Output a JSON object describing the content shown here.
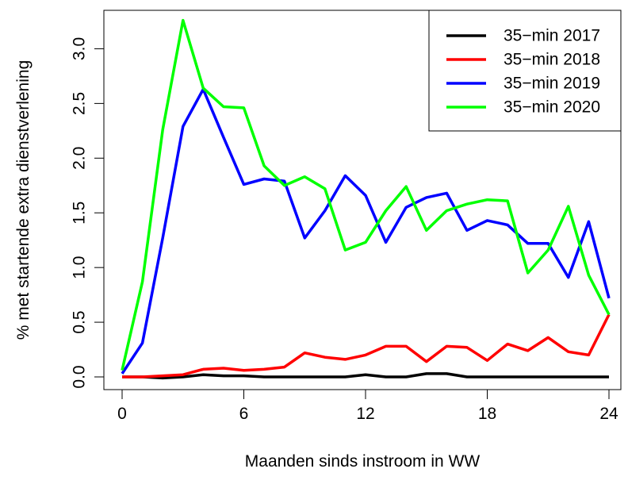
{
  "chart_data": {
    "type": "line",
    "xlabel": "Maanden sinds instroom in WW",
    "ylabel": "% met startende extra dienstverlening",
    "xlim": [
      0,
      24
    ],
    "ylim": [
      0,
      3.25
    ],
    "xticks": [
      0,
      6,
      12,
      18,
      24
    ],
    "yticks": [
      0.0,
      0.5,
      1.0,
      1.5,
      2.0,
      2.5,
      3.0
    ],
    "ytick_labels": [
      "0.0",
      "0.5",
      "1.0",
      "1.5",
      "2.0",
      "2.5",
      "3.0"
    ],
    "grid": false,
    "legend_position": "top-right",
    "x": [
      0,
      1,
      2,
      3,
      4,
      5,
      6,
      7,
      8,
      9,
      10,
      11,
      12,
      13,
      14,
      15,
      16,
      17,
      18,
      19,
      20,
      21,
      22,
      23,
      24
    ],
    "series": [
      {
        "name": "35−min 2017",
        "color": "#000000",
        "values": [
          0.0,
          0.0,
          -0.01,
          0.0,
          0.02,
          0.01,
          0.01,
          0.0,
          0.0,
          0.0,
          0.0,
          0.0,
          0.02,
          0.0,
          0.0,
          0.03,
          0.03,
          0.0,
          0.0,
          0.0,
          0.0,
          0.0,
          0.0,
          0.0,
          0.0
        ]
      },
      {
        "name": "35−min 2018",
        "color": "#ff0000",
        "values": [
          0.0,
          0.0,
          0.01,
          0.02,
          0.07,
          0.08,
          0.06,
          0.07,
          0.09,
          0.22,
          0.18,
          0.16,
          0.2,
          0.28,
          0.28,
          0.14,
          0.28,
          0.27,
          0.15,
          0.3,
          0.24,
          0.36,
          0.23,
          0.2,
          0.57
        ]
      },
      {
        "name": "35−min 2019",
        "color": "#0000ff",
        "values": [
          0.03,
          0.31,
          1.27,
          2.29,
          2.63,
          2.19,
          1.76,
          1.81,
          1.79,
          1.27,
          1.52,
          1.84,
          1.66,
          1.23,
          1.55,
          1.64,
          1.68,
          1.34,
          1.43,
          1.39,
          1.22,
          1.22,
          0.91,
          1.42,
          0.72
        ]
      },
      {
        "name": "35−min 2020",
        "color": "#00ff00",
        "values": [
          0.06,
          0.87,
          2.26,
          3.26,
          2.64,
          2.47,
          2.46,
          1.93,
          1.75,
          1.83,
          1.72,
          1.16,
          1.23,
          1.52,
          1.74,
          1.34,
          1.52,
          1.58,
          1.62,
          1.61,
          0.95,
          1.16,
          1.56,
          0.93,
          0.57
        ]
      }
    ]
  }
}
